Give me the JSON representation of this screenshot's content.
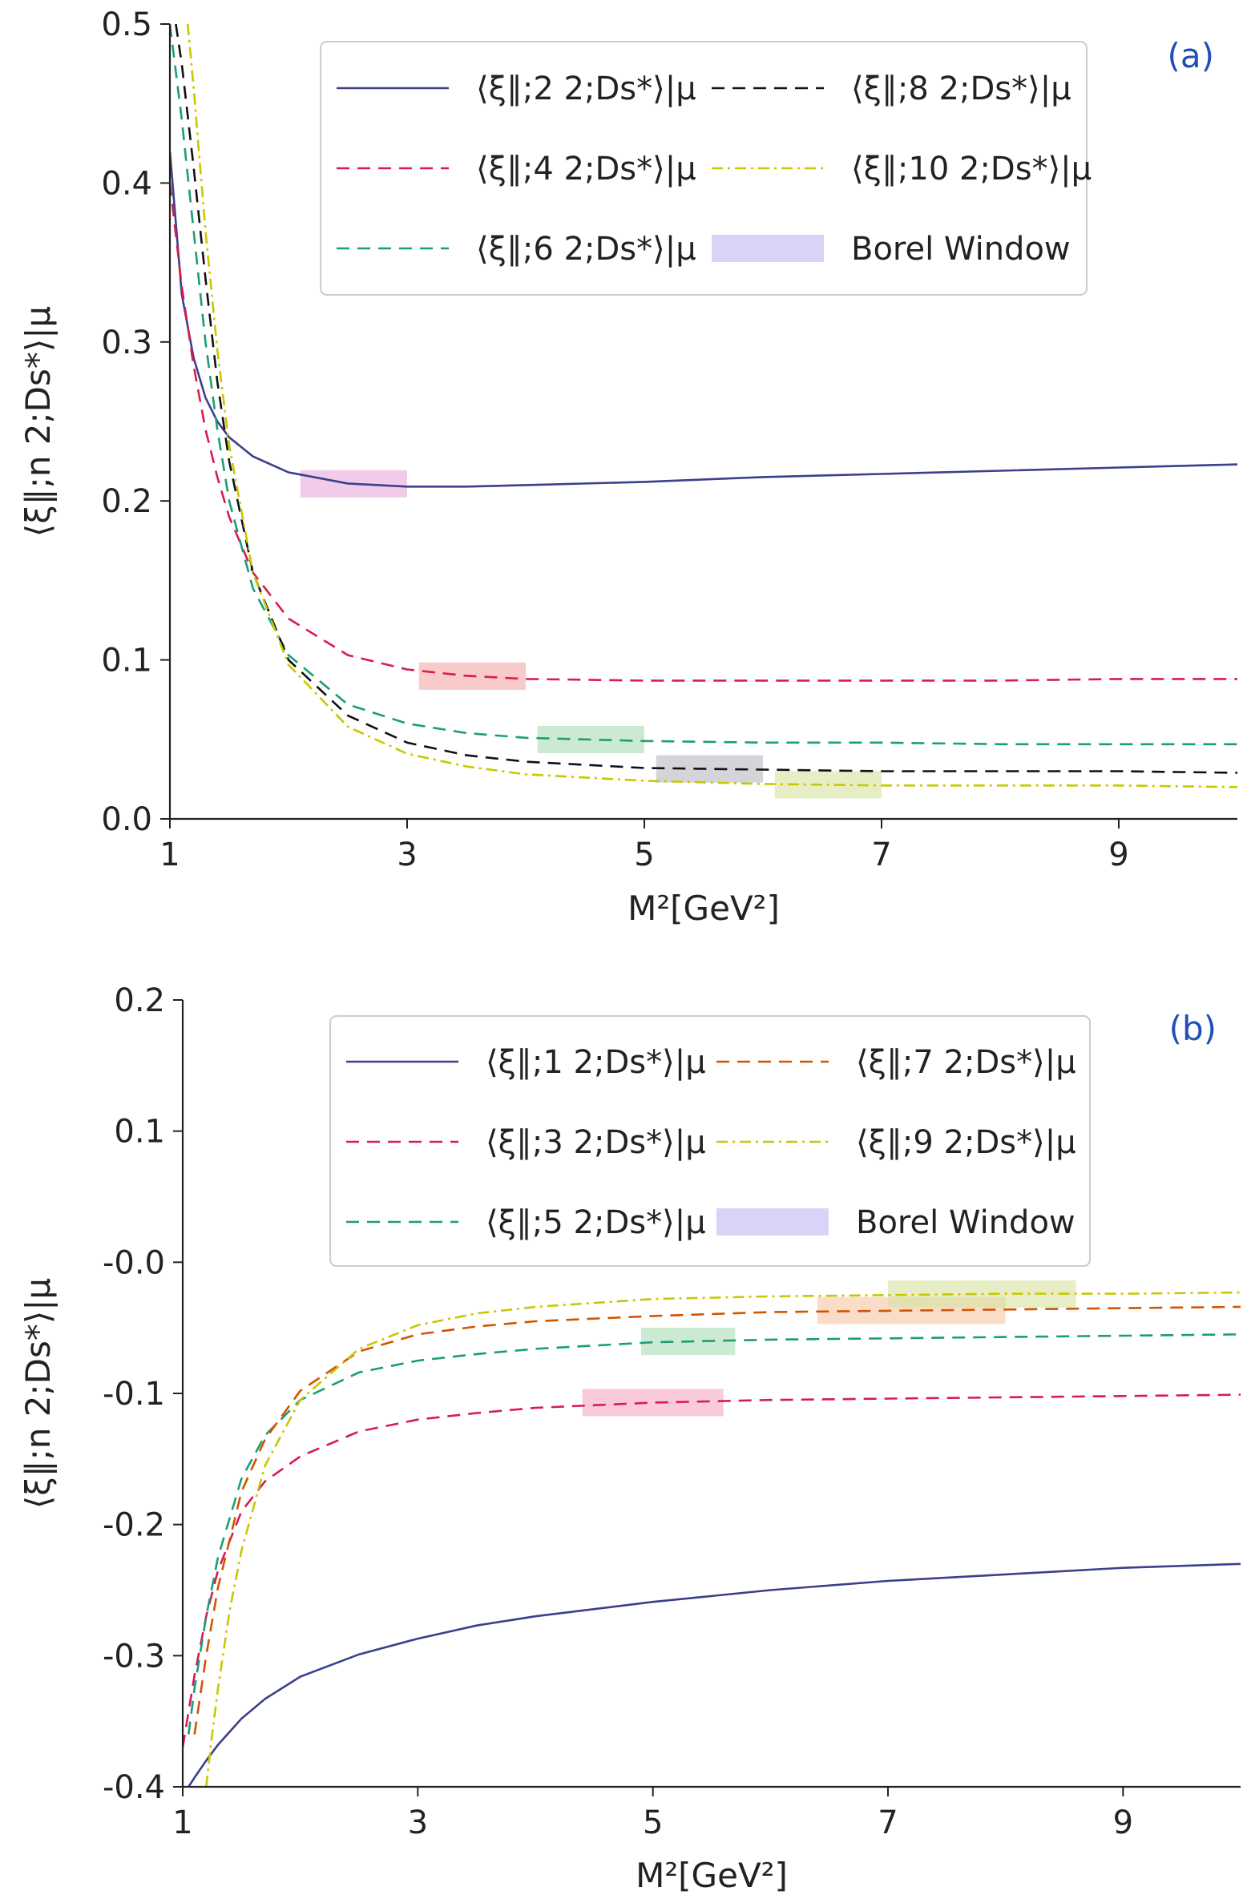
{
  "chart_data": [
    {
      "type": "line",
      "panel_label": "(a)",
      "xlabel": "M²[GeV²]",
      "ylabel": "⟨ξ∥;n 2;Ds*⟩|μ",
      "xlim": [
        1,
        10
      ],
      "ylim": [
        0.0,
        0.5
      ],
      "x_ticks": [
        1,
        3,
        5,
        7,
        9
      ],
      "y_ticks": [
        0.0,
        0.1,
        0.2,
        0.3,
        0.4,
        0.5
      ],
      "y_tick_labels": [
        "0.0",
        "0.1",
        "0.2",
        "0.3",
        "0.4",
        "0.5"
      ],
      "grid": false,
      "legend_position": "top-right",
      "legend": [
        {
          "label": "⟨ξ∥;2 2;Ds*⟩|μ",
          "series": 0
        },
        {
          "label": "⟨ξ∥;4 2;Ds*⟩|μ",
          "series": 1
        },
        {
          "label": "⟨ξ∥;6 2;Ds*⟩|μ",
          "series": 2
        },
        {
          "label": "⟨ξ∥;8 2;Ds*⟩|μ",
          "series": 3
        },
        {
          "label": "⟨ξ∥;10 2;Ds*⟩|μ",
          "series": 4
        },
        {
          "label": "Borel Window",
          "series": -1
        }
      ],
      "series": [
        {
          "color": "#3b3f8c",
          "style": "solid",
          "x": [
            1.0,
            1.1,
            1.2,
            1.3,
            1.4,
            1.5,
            1.7,
            2.0,
            2.5,
            3.0,
            3.5,
            4.0,
            5.0,
            6.0,
            7.0,
            8.0,
            9.0,
            10.0
          ],
          "y": [
            0.42,
            0.33,
            0.29,
            0.265,
            0.25,
            0.24,
            0.228,
            0.218,
            0.211,
            0.209,
            0.209,
            0.21,
            0.212,
            0.215,
            0.217,
            0.219,
            0.221,
            0.223
          ],
          "window": [
            2.1,
            3.0
          ]
        },
        {
          "color": "#d81b50",
          "style": "dashed",
          "x": [
            1.0,
            1.1,
            1.2,
            1.3,
            1.4,
            1.5,
            1.7,
            2.0,
            2.5,
            3.0,
            3.5,
            4.0,
            5.0,
            6.0,
            7.0,
            8.0,
            9.0,
            10.0
          ],
          "y": [
            0.4,
            0.335,
            0.285,
            0.245,
            0.215,
            0.19,
            0.155,
            0.126,
            0.103,
            0.094,
            0.09,
            0.088,
            0.087,
            0.087,
            0.087,
            0.087,
            0.088,
            0.088
          ],
          "window": [
            3.1,
            4.0
          ]
        },
        {
          "color": "#1a9e77",
          "style": "dashed",
          "x": [
            1.0,
            1.1,
            1.2,
            1.3,
            1.4,
            1.5,
            1.7,
            2.0,
            2.5,
            3.0,
            3.5,
            4.0,
            5.0,
            6.0,
            7.0,
            8.0,
            9.0,
            10.0
          ],
          "y": [
            0.5,
            0.44,
            0.37,
            0.3,
            0.245,
            0.2,
            0.145,
            0.103,
            0.072,
            0.06,
            0.054,
            0.051,
            0.049,
            0.048,
            0.048,
            0.047,
            0.047,
            0.047
          ],
          "window": [
            4.1,
            5.0
          ]
        },
        {
          "color": "#111111",
          "style": "dashed",
          "x": [
            1.05,
            1.1,
            1.2,
            1.3,
            1.4,
            1.5,
            1.7,
            2.0,
            2.5,
            3.0,
            3.5,
            4.0,
            5.0,
            6.0,
            7.0,
            8.0,
            9.0,
            10.0
          ],
          "y": [
            0.5,
            0.475,
            0.41,
            0.34,
            0.275,
            0.225,
            0.155,
            0.1,
            0.065,
            0.048,
            0.04,
            0.036,
            0.032,
            0.031,
            0.03,
            0.03,
            0.03,
            0.029
          ],
          "window": [
            5.1,
            6.0
          ]
        },
        {
          "color": "#c8c800",
          "style": "dashdot",
          "x": [
            1.15,
            1.2,
            1.3,
            1.4,
            1.5,
            1.7,
            2.0,
            2.5,
            3.0,
            3.5,
            4.0,
            5.0,
            6.0,
            7.0,
            8.0,
            9.0,
            10.0
          ],
          "y": [
            0.5,
            0.46,
            0.37,
            0.295,
            0.235,
            0.155,
            0.097,
            0.058,
            0.041,
            0.033,
            0.028,
            0.024,
            0.022,
            0.021,
            0.021,
            0.021,
            0.02
          ],
          "window": [
            6.1,
            7.0
          ]
        }
      ],
      "window_colors": [
        "#e9a9d8",
        "#f3a7a7",
        "#a9dcb2",
        "#b8b8c0",
        "#d7e3a0"
      ],
      "window_legend_color": "#d8d4f8"
    },
    {
      "type": "line",
      "panel_label": "(b)",
      "xlabel": "M²[GeV²]",
      "ylabel": "⟨ξ∥;n 2;Ds*⟩|μ",
      "xlim": [
        1,
        10
      ],
      "ylim": [
        -0.4,
        0.2
      ],
      "x_ticks": [
        1,
        3,
        5,
        7,
        9
      ],
      "y_ticks": [
        -0.4,
        -0.3,
        -0.2,
        -0.1,
        0.0,
        0.1,
        0.2
      ],
      "y_tick_labels": [
        "-0.4",
        "-0.3",
        "-0.2",
        "-0.1",
        "-0.0",
        "0.1",
        "0.2"
      ],
      "grid": false,
      "legend_position": "top-right",
      "legend": [
        {
          "label": "⟨ξ∥;1 2;Ds*⟩|μ",
          "series": 0
        },
        {
          "label": "⟨ξ∥;3 2;Ds*⟩|μ",
          "series": 1
        },
        {
          "label": "⟨ξ∥;5 2;Ds*⟩|μ",
          "series": 2
        },
        {
          "label": "⟨ξ∥;7 2;Ds*⟩|μ",
          "series": 3
        },
        {
          "label": "⟨ξ∥;9 2;Ds*⟩|μ",
          "series": 4
        },
        {
          "label": "Borel Window",
          "series": -1
        }
      ],
      "series": [
        {
          "color": "#3b3f8c",
          "style": "solid",
          "x": [
            1.05,
            1.1,
            1.2,
            1.3,
            1.5,
            1.7,
            2.0,
            2.5,
            3.0,
            3.5,
            4.0,
            5.0,
            6.0,
            7.0,
            8.0,
            9.0,
            10.0
          ],
          "y": [
            -0.4,
            -0.393,
            -0.38,
            -0.368,
            -0.348,
            -0.333,
            -0.316,
            -0.299,
            -0.287,
            -0.277,
            -0.27,
            -0.259,
            -0.25,
            -0.243,
            -0.238,
            -0.233,
            -0.23
          ],
          "window": null
        },
        {
          "color": "#d81b50",
          "style": "dashed",
          "x": [
            1.0,
            1.1,
            1.2,
            1.3,
            1.5,
            1.7,
            2.0,
            2.5,
            3.0,
            3.5,
            4.0,
            5.0,
            6.0,
            7.0,
            8.0,
            9.0,
            10.0
          ],
          "y": [
            -0.37,
            -0.315,
            -0.27,
            -0.235,
            -0.19,
            -0.167,
            -0.148,
            -0.129,
            -0.12,
            -0.115,
            -0.111,
            -0.107,
            -0.105,
            -0.104,
            -0.103,
            -0.102,
            -0.101
          ],
          "window": [
            4.4,
            5.6
          ]
        },
        {
          "color": "#1a9e77",
          "style": "dashed",
          "x": [
            1.05,
            1.1,
            1.2,
            1.3,
            1.5,
            1.7,
            2.0,
            2.5,
            3.0,
            3.5,
            4.0,
            5.0,
            6.0,
            7.0,
            8.0,
            9.0,
            10.0
          ],
          "y": [
            -0.36,
            -0.325,
            -0.27,
            -0.225,
            -0.165,
            -0.132,
            -0.105,
            -0.084,
            -0.075,
            -0.07,
            -0.066,
            -0.061,
            -0.059,
            -0.058,
            -0.057,
            -0.056,
            -0.055
          ],
          "window": [
            4.9,
            5.7
          ]
        },
        {
          "color": "#d35400",
          "style": "dashed",
          "x": [
            1.1,
            1.15,
            1.2,
            1.3,
            1.5,
            1.7,
            2.0,
            2.5,
            3.0,
            3.5,
            4.0,
            5.0,
            6.0,
            7.0,
            8.0,
            9.0,
            10.0
          ],
          "y": [
            -0.36,
            -0.33,
            -0.3,
            -0.248,
            -0.175,
            -0.135,
            -0.098,
            -0.068,
            -0.055,
            -0.049,
            -0.045,
            -0.041,
            -0.038,
            -0.037,
            -0.036,
            -0.035,
            -0.034
          ],
          "window": [
            6.4,
            8.0
          ]
        },
        {
          "color": "#c8c800",
          "style": "dashdot",
          "x": [
            1.2,
            1.25,
            1.3,
            1.4,
            1.5,
            1.7,
            2.0,
            2.5,
            3.0,
            3.5,
            4.0,
            5.0,
            6.0,
            7.0,
            8.0,
            9.0,
            10.0
          ],
          "y": [
            -0.4,
            -0.36,
            -0.325,
            -0.265,
            -0.22,
            -0.155,
            -0.105,
            -0.066,
            -0.048,
            -0.039,
            -0.034,
            -0.028,
            -0.026,
            -0.025,
            -0.024,
            -0.024,
            -0.023
          ],
          "window": [
            7.0,
            8.6
          ]
        }
      ],
      "window_colors": [
        null,
        "#f3a7c4",
        "#a9dcb2",
        "#f6c7a5",
        "#d7e3a0"
      ],
      "window_legend_color": "#d8d4f8"
    }
  ]
}
